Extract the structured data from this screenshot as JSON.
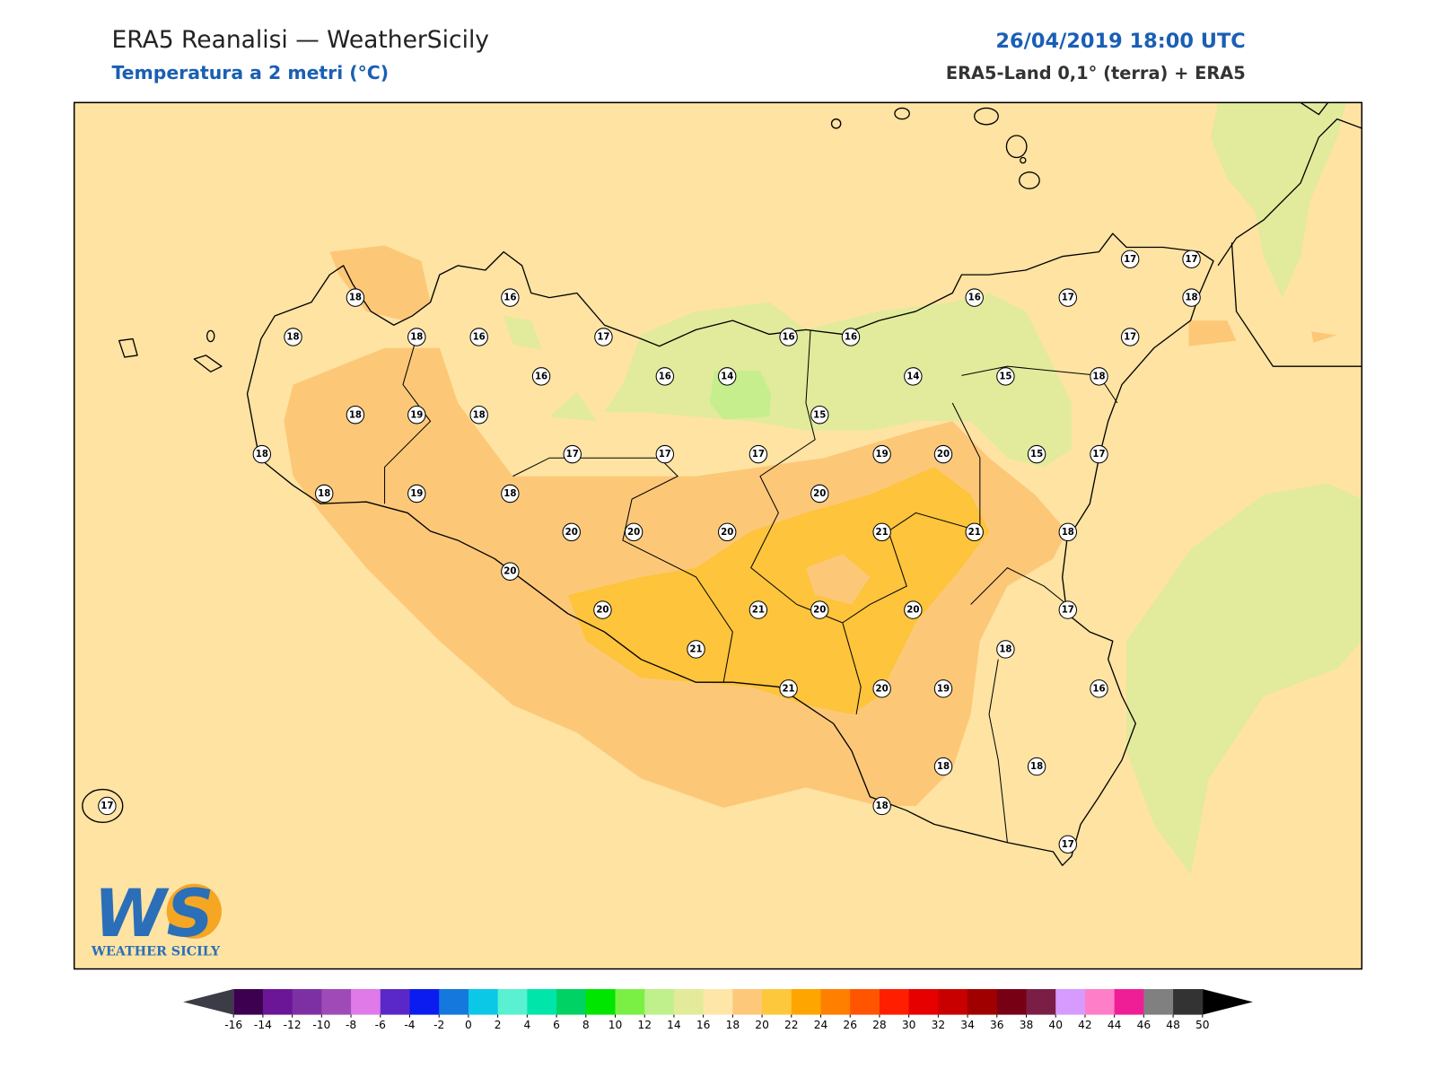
{
  "header": {
    "title": "ERA5 Reanalisi — WeatherSicily",
    "subtitle": "Temperatura a 2 metri (°C)",
    "datetime": "26/04/2019 18:00 UTC",
    "source": "ERA5-Land 0,1° (terra) + ERA5"
  },
  "stations": {
    "values": [
      18,
      16,
      18,
      18,
      16,
      17,
      16,
      16,
      14,
      18,
      19,
      18,
      18,
      17,
      17,
      17,
      18,
      19,
      18,
      20,
      20,
      20,
      20,
      20,
      21,
      21,
      20,
      21,
      20,
      19,
      20,
      21,
      21,
      20,
      20,
      19,
      18,
      18,
      18,
      17,
      18,
      16,
      17,
      18,
      17,
      15,
      15,
      14,
      15,
      16,
      16,
      16,
      17,
      17,
      17,
      18,
      17,
      18,
      17
    ]
  },
  "colorbar": {
    "ticks": [
      -16,
      -14,
      -12,
      -10,
      -8,
      -6,
      -4,
      -2,
      0,
      2,
      4,
      6,
      8,
      10,
      12,
      14,
      16,
      18,
      20,
      22,
      24,
      26,
      28,
      30,
      32,
      34,
      36,
      38,
      40,
      42,
      44,
      46,
      48,
      50
    ],
    "colors": [
      "#3d0050",
      "#6a1696",
      "#7d30a3",
      "#9e4bb8",
      "#e07ae8",
      "#5a28c8",
      "#0a1cf0",
      "#1478dc",
      "#0ac8e6",
      "#5af0d2",
      "#00e6aa",
      "#00d264",
      "#00e600",
      "#7af045",
      "#bff08c",
      "#e3eb9a",
      "#fee6a8",
      "#fdc87a",
      "#fdc83c",
      "#ffa500",
      "#ff7f00",
      "#ff5500",
      "#ff1e00",
      "#e60000",
      "#c80000",
      "#a00000",
      "#780014",
      "#7a1e46",
      "#d79bff",
      "#ff7ec8",
      "#f01e96",
      "#808080",
      "#333333"
    ],
    "under_color": "#3c3c46",
    "over_color": "#000000"
  },
  "logo": {
    "mark": "WS",
    "name": "WEATHER SICILY"
  }
}
